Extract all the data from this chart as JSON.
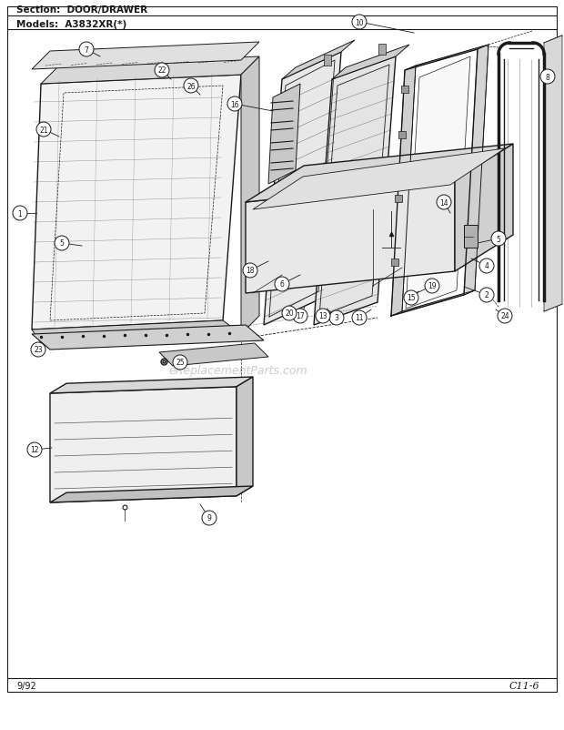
{
  "title_section": "Section:  DOOR/DRAWER",
  "title_models": "Models:  A3832XR(*)",
  "footer_left": "9/92",
  "footer_right": "C11-6",
  "watermark": "eReplacementParts.com",
  "bg_color": "#ffffff",
  "line_color": "#1a1a1a"
}
